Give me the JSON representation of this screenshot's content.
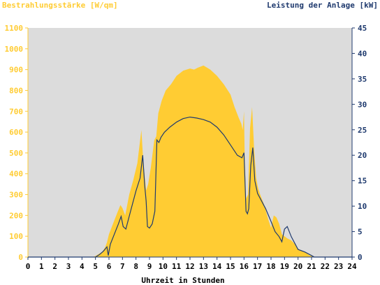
{
  "chart_data": {
    "type": "area",
    "title_left": "Bestrahlungsstärke [W/qm]",
    "title_right": "Leistung der Anlage [kW]",
    "xlabel": "Uhrzeit in Stunden",
    "x_ticks": [
      "0",
      "1",
      "2",
      "3",
      "4",
      "5",
      "6",
      "7",
      "8",
      "9",
      "10",
      "11",
      "12",
      "13",
      "14",
      "15",
      "16",
      "17",
      "18",
      "19",
      "20",
      "21",
      "22",
      "23",
      "24"
    ],
    "y_left_ticks": [
      "0",
      "100",
      "200",
      "300",
      "400",
      "500",
      "600",
      "700",
      "800",
      "900",
      "1000",
      "1100"
    ],
    "y_right_ticks": [
      "0",
      "5",
      "10",
      "15",
      "20",
      "25",
      "30",
      "35",
      "40",
      "45"
    ],
    "xlim": [
      0,
      24
    ],
    "ylim_left": [
      0,
      1100
    ],
    "ylim_right": [
      0,
      45
    ],
    "grid": false,
    "colors": {
      "plot_bg": "#dcdcdc",
      "irradiance_fill": "#ffcc33",
      "power_line": "#1f3a6e",
      "left_axis": "#ffcc33",
      "right_axis": "#1f3a6e"
    },
    "series": [
      {
        "axis": "left",
        "style": "area",
        "x": [
          0,
          4.8,
          5.0,
          5.5,
          5.7,
          5.85,
          6.0,
          6.3,
          6.6,
          6.85,
          7.0,
          7.2,
          7.5,
          7.8,
          8.1,
          8.4,
          8.55,
          8.75,
          8.9,
          9.1,
          9.35,
          9.5,
          9.65,
          9.9,
          10.2,
          10.6,
          11.0,
          11.5,
          12.0,
          12.3,
          12.6,
          13.0,
          13.5,
          14.0,
          14.5,
          15.0,
          15.3,
          15.6,
          15.8,
          15.9,
          16.0,
          16.05,
          16.15,
          16.3,
          16.45,
          16.6,
          16.75,
          16.9,
          17.05,
          17.2,
          17.5,
          17.8,
          18.0,
          18.2,
          18.4,
          18.6,
          18.8,
          19.0,
          19.2,
          19.5,
          19.8,
          20.0,
          20.3,
          20.6,
          20.8,
          21.0,
          21.2,
          21.4,
          24
        ],
        "y": [
          0,
          0,
          5,
          25,
          45,
          70,
          110,
          160,
          210,
          250,
          235,
          200,
          300,
          370,
          450,
          610,
          450,
          320,
          350,
          430,
          560,
          580,
          690,
          750,
          800,
          830,
          870,
          895,
          905,
          900,
          910,
          920,
          900,
          870,
          830,
          780,
          720,
          670,
          640,
          610,
          700,
          480,
          280,
          300,
          620,
          720,
          520,
          380,
          330,
          300,
          250,
          180,
          140,
          200,
          190,
          160,
          110,
          100,
          90,
          80,
          60,
          40,
          30,
          20,
          10,
          5,
          0,
          0,
          0
        ]
      },
      {
        "axis": "right",
        "style": "line",
        "x": [
          0,
          5.0,
          5.3,
          5.6,
          5.85,
          5.95,
          6.1,
          6.4,
          6.7,
          6.9,
          7.05,
          7.25,
          7.6,
          8.0,
          8.3,
          8.5,
          8.65,
          8.75,
          8.85,
          9.0,
          9.2,
          9.4,
          9.55,
          9.7,
          9.85,
          10.1,
          10.5,
          11.0,
          11.5,
          12.0,
          12.5,
          13.0,
          13.5,
          14.0,
          14.5,
          15.0,
          15.5,
          15.85,
          16.0,
          16.15,
          16.25,
          16.35,
          16.5,
          16.65,
          16.8,
          17.0,
          17.3,
          17.6,
          18.0,
          18.3,
          18.6,
          18.8,
          19.0,
          19.2,
          19.5,
          19.8,
          20.0,
          20.5,
          21.0,
          21.2,
          24
        ],
        "y": [
          0,
          0,
          0.5,
          1.2,
          2.0,
          0.3,
          2.5,
          4.5,
          6.5,
          8.0,
          6.0,
          5.5,
          9.0,
          13.0,
          15.5,
          20.0,
          14.0,
          11.0,
          6.0,
          5.7,
          6.5,
          9.0,
          23.0,
          22.5,
          23.5,
          24.5,
          25.5,
          26.5,
          27.2,
          27.5,
          27.3,
          27.0,
          26.5,
          25.5,
          24.0,
          22.0,
          20.0,
          19.5,
          20.5,
          9.0,
          8.5,
          9.5,
          18.0,
          21.5,
          15.0,
          12.5,
          11.0,
          9.5,
          7.0,
          5.0,
          4.0,
          3.0,
          5.5,
          6.0,
          4.0,
          2.5,
          1.5,
          1.0,
          0.3,
          0,
          0
        ]
      }
    ]
  }
}
